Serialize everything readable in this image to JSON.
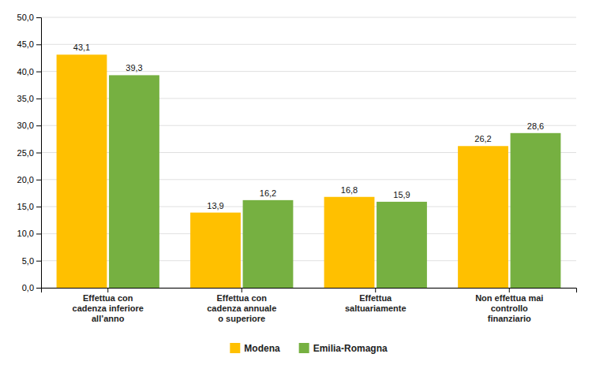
{
  "chart_data": {
    "type": "bar",
    "categories": [
      "Effettua con\ncadenza inferiore\nall’anno",
      "Effettua con\ncadenza annuale\no superiore",
      "Effettua\nsaltuariamente",
      "Non effettua mai\ncontrollo\nfinanziario"
    ],
    "series": [
      {
        "name": "Modena",
        "color": "#FFC000",
        "values": [
          43.1,
          13.9,
          16.8,
          26.2
        ],
        "value_labels": [
          "43,1",
          "13,9",
          "16,8",
          "26,2"
        ]
      },
      {
        "name": "Emilia-Romagna",
        "color": "#76B041",
        "values": [
          39.3,
          16.2,
          15.9,
          28.6
        ],
        "value_labels": [
          "39,3",
          "16,2",
          "15,9",
          "28,6"
        ]
      }
    ],
    "ylim": [
      0,
      50
    ],
    "yticks": [
      {
        "value": 0,
        "label": "0,0"
      },
      {
        "value": 5,
        "label": "5,0"
      },
      {
        "value": 10,
        "label": "10,0"
      },
      {
        "value": 15,
        "label": "15,0"
      },
      {
        "value": 20,
        "label": "20,0"
      },
      {
        "value": 25,
        "label": "25,0"
      },
      {
        "value": 30,
        "label": "30,0"
      },
      {
        "value": 35,
        "label": "35,0"
      },
      {
        "value": 40,
        "label": "40,0"
      },
      {
        "value": 45,
        "label": "45,0"
      },
      {
        "value": 50,
        "label": "50,0"
      }
    ],
    "grid": true,
    "legend": "bottom",
    "data_labels": true
  }
}
